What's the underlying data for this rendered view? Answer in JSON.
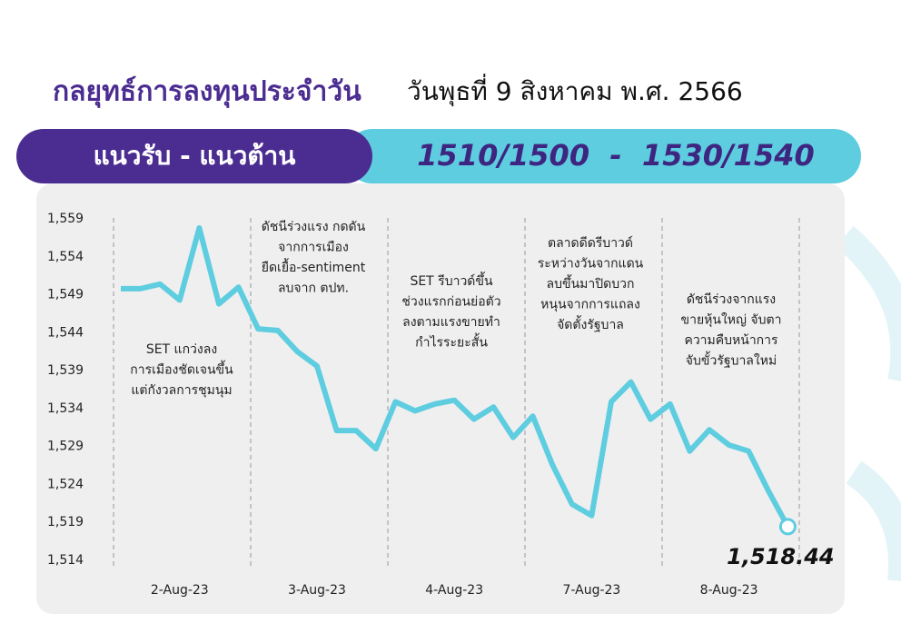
{
  "header": {
    "title": "กลยุทธ์การลงทุนประจำวัน",
    "date": "วันพุธที่ 9 สิงหาคม พ.ศ. 2566"
  },
  "banner": {
    "label": "แนวรับ - แนวต้าน",
    "levels": "1510/1500  -  1530/1540"
  },
  "chart_data": {
    "type": "line",
    "categories": [
      null,
      null,
      null,
      "2-Aug-23",
      null,
      null,
      null,
      null,
      null,
      null,
      "3-Aug-23",
      null,
      null,
      null,
      null,
      null,
      null,
      "4-Aug-23",
      null,
      null,
      null,
      null,
      null,
      null,
      "7-Aug-23",
      null,
      null,
      null,
      null,
      null,
      null,
      "8-Aug-23",
      null,
      null,
      null
    ],
    "series": [
      {
        "name": "SET",
        "color": "#5ecde0",
        "values": [
          1549.8,
          1549.8,
          1550.4,
          1548.3,
          1557.8,
          1547.8,
          1550.0,
          1544.5,
          1544.3,
          1541.5,
          1539.6,
          1531.1,
          1531.1,
          1528.7,
          1534.9,
          1533.7,
          1534.6,
          1535.1,
          1532.6,
          1534.2,
          1530.2,
          1533.0,
          1526.6,
          1521.4,
          1519.9,
          1534.9,
          1537.5,
          1532.6,
          1534.6,
          1528.4,
          1531.2,
          1529.2,
          1528.4,
          1523.2,
          1518.44
        ],
        "value_labels": [
          null,
          null,
          null,
          null,
          null,
          null,
          null,
          null,
          null,
          null,
          null,
          null,
          null,
          null,
          null,
          null,
          null,
          null,
          null,
          null,
          null,
          null,
          null,
          null,
          null,
          null,
          null,
          null,
          null,
          null,
          null,
          null,
          null,
          null,
          "1,518.44"
        ]
      }
    ],
    "ylim": [
      1514,
      1559
    ],
    "yticks": [
      {
        "value": 1514,
        "label": "1,514"
      },
      {
        "value": 1519,
        "label": "1,519"
      },
      {
        "value": 1524,
        "label": "1,524"
      },
      {
        "value": 1529,
        "label": "1,529"
      },
      {
        "value": 1534,
        "label": "1,534"
      },
      {
        "value": 1539,
        "label": "1,539"
      },
      {
        "value": 1544,
        "label": "1,544"
      },
      {
        "value": 1549,
        "label": "1,549"
      },
      {
        "value": 1554,
        "label": "1,554"
      },
      {
        "value": 1559,
        "label": "1,559"
      }
    ],
    "annotations": [
      [
        "SET แกว่งลง",
        "การเมืองชัดเจนขึ้น",
        "แต่กังวลการชุมนุม"
      ],
      [
        "ดัชนีร่วงแรง กดดัน",
        "จากการเมือง",
        "ยืดเยื้อ-sentiment",
        "ลบจาก ตปท."
      ],
      [
        "SET รีบาวด์ขึ้น",
        "ช่วงแรกก่อนย่อตัว",
        "ลงตามแรงขายทำ",
        "กำไรระยะสั้น"
      ],
      [
        "ตลาดดีดรีบาวด์",
        "ระหว่างวันจากแดน",
        "ลบขึ้นมาปิดบวก",
        "หนุนจากการแถลง",
        "จัดตั้งรัฐบาล"
      ],
      [
        "ดัชนีร่วงจากแรง",
        "ขายหุ้นใหญ่ จับตา",
        "ความคืบหน้าการ",
        "จับขั้วรัฐบาลใหม่"
      ]
    ]
  }
}
